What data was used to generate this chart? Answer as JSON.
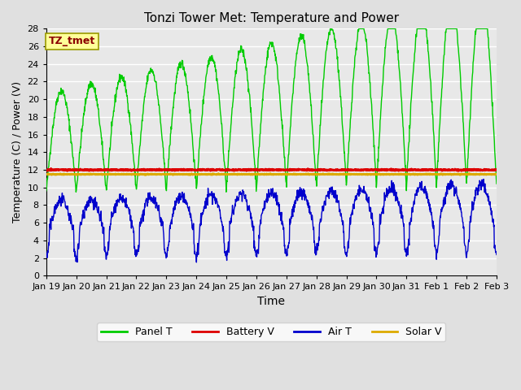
{
  "title": "Tonzi Tower Met: Temperature and Power",
  "xlabel": "Time",
  "ylabel": "Temperature (C) / Power (V)",
  "ylim": [
    0,
    28
  ],
  "yticks": [
    0,
    2,
    4,
    6,
    8,
    10,
    12,
    14,
    16,
    18,
    20,
    22,
    24,
    26,
    28
  ],
  "xtick_labels": [
    "Jan 19",
    "Jan 20",
    "Jan 21",
    "Jan 22",
    "Jan 23",
    "Jan 24",
    "Jan 25",
    "Jan 26",
    "Jan 27",
    "Jan 28",
    "Jan 29",
    "Jan 30",
    "Jan 31",
    "Feb 1",
    "Feb 2",
    "Feb 3"
  ],
  "xtick_positions": [
    0,
    1,
    2,
    3,
    4,
    5,
    6,
    7,
    8,
    9,
    10,
    11,
    12,
    13,
    14,
    15
  ],
  "background_color": "#e0e0e0",
  "plot_bg_color": "#e8e8e8",
  "grid_color": "white",
  "annotation_label": "TZ_tmet",
  "annotation_color": "#8b0000",
  "annotation_bg": "#ffff99",
  "battery_v": 12.0,
  "solar_v": 11.5,
  "panel_t_color": "#00cc00",
  "battery_v_color": "#dd0000",
  "air_t_color": "#0000cc",
  "solar_v_color": "#ddaa00",
  "legend_labels": [
    "Panel T",
    "Battery V",
    "Air T",
    "Solar V"
  ]
}
